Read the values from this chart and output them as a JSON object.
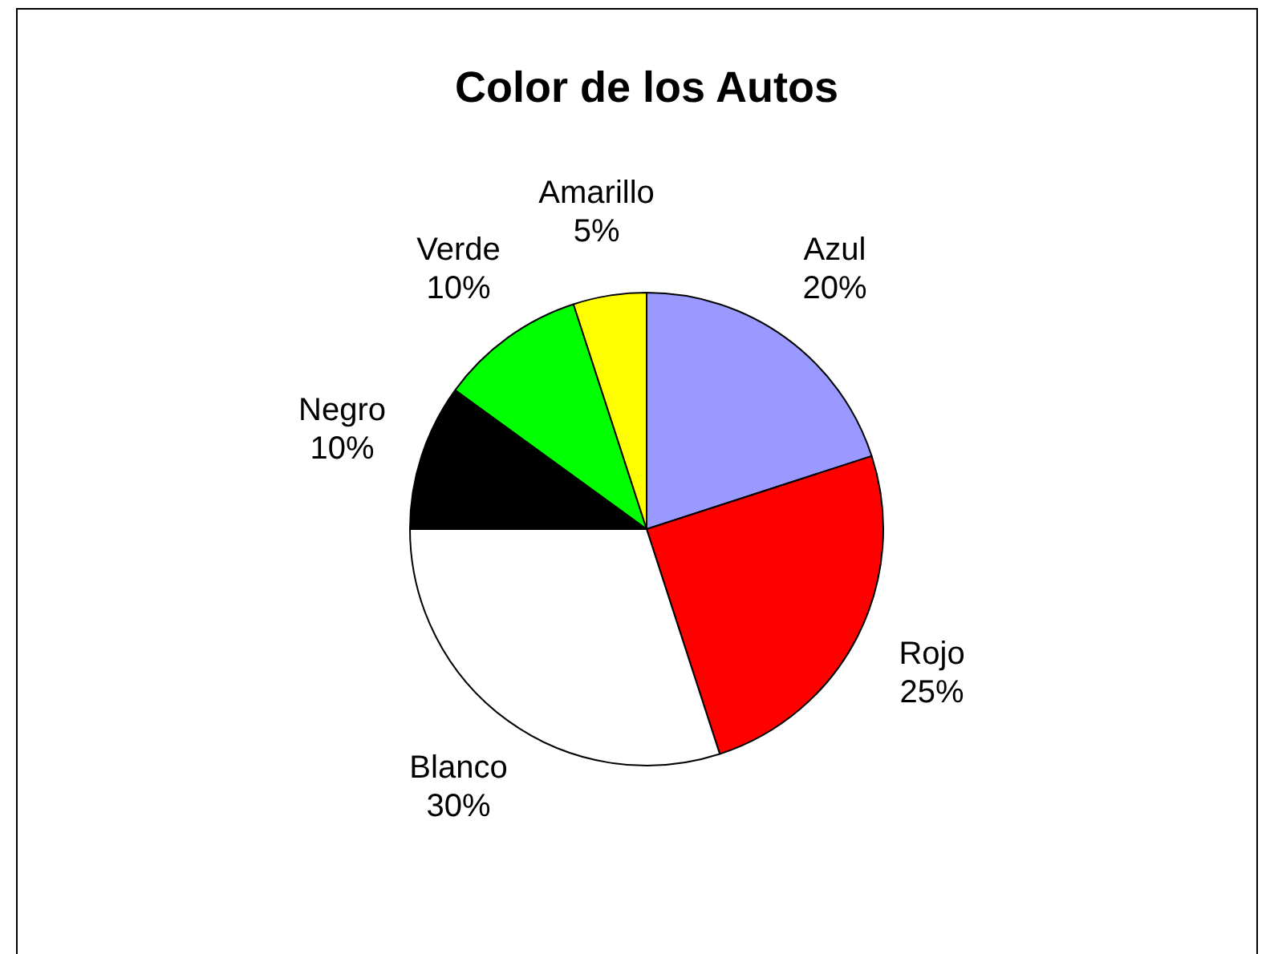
{
  "chart_data": {
    "type": "pie",
    "title": "Color de los Autos",
    "categories": [
      "Azul",
      "Rojo",
      "Blanco",
      "Negro",
      "Verde",
      "Amarillo"
    ],
    "values": [
      20,
      25,
      30,
      10,
      10,
      5
    ],
    "value_labels": [
      "20%",
      "25%",
      "30%",
      "10%",
      "10%",
      "5%"
    ],
    "colors": [
      "#9999ff",
      "#ff0000",
      "#ffffff",
      "#000000",
      "#00ff00",
      "#ffff00"
    ],
    "legend": false
  }
}
